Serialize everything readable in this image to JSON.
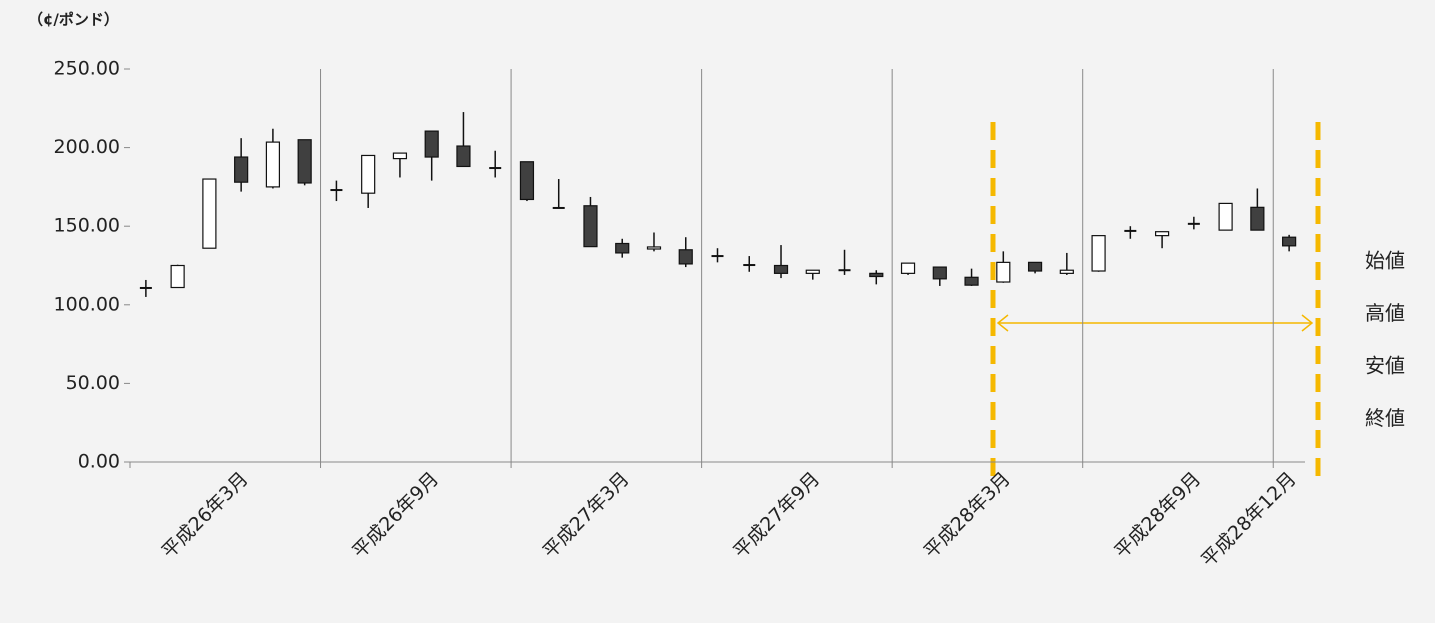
{
  "chart_data": {
    "type": "candlestick",
    "y_label": "（¢/ポンド）",
    "categories": [
      null,
      null,
      null,
      "平成26年3月",
      null,
      null,
      null,
      null,
      null,
      "平成26年9月",
      null,
      null,
      null,
      null,
      null,
      "平成27年3月",
      null,
      null,
      null,
      null,
      null,
      "平成27年9月",
      null,
      null,
      null,
      null,
      null,
      "平成28年3月",
      null,
      null,
      null,
      null,
      null,
      "平成28年9月",
      null,
      null,
      "平成28年12月"
    ],
    "series": [
      {
        "name": "始値",
        "values": [
          110.7,
          111,
          136,
          194,
          175,
          205,
          173,
          171,
          193,
          210.5,
          201,
          187,
          191,
          161.6,
          163,
          139,
          135.5,
          135,
          131,
          125.3,
          125,
          120,
          122,
          120,
          120,
          124,
          117.5,
          114.5,
          127,
          120,
          121.5,
          147,
          144,
          151.5,
          147.5,
          162,
          143
        ]
      },
      {
        "name": "高値",
        "values": [
          115.8,
          125.5,
          180,
          206,
          212,
          205,
          179,
          195,
          196.5,
          210.5,
          222.6,
          198,
          191,
          180,
          168.6,
          142,
          146,
          143,
          136,
          131,
          138,
          122,
          135,
          122,
          126.5,
          124,
          123,
          134,
          127,
          133,
          144,
          150,
          146.5,
          156,
          164.5,
          174,
          144.5
        ]
      },
      {
        "name": "安値",
        "values": [
          105,
          111,
          136,
          172,
          174,
          176,
          166,
          161.6,
          181,
          179,
          188,
          181,
          166,
          161.6,
          137,
          130,
          134,
          124,
          127,
          121,
          117,
          116,
          119,
          113,
          119,
          112,
          112,
          114,
          120,
          119,
          121,
          142,
          136,
          148,
          147.5,
          147.5,
          134
        ]
      },
      {
        "name": "終値",
        "values": [
          110.7,
          125,
          180,
          178,
          203.5,
          177.5,
          173,
          195,
          196.5,
          194,
          188,
          187,
          167,
          161.6,
          137,
          133,
          136.8,
          126,
          131,
          125.3,
          120,
          122,
          122,
          118,
          126.5,
          116.5,
          112.5,
          127,
          121.5,
          122,
          144,
          147,
          146.5,
          151.5,
          164.5,
          147.5,
          137.5
        ]
      }
    ],
    "up_color": "#ffffff",
    "down_color": "#404040",
    "ylim": [
      0,
      250
    ],
    "yticks": [
      {
        "value": 0,
        "label": "0.00"
      },
      {
        "value": 50,
        "label": "50.00"
      },
      {
        "value": 100,
        "label": "100.00"
      },
      {
        "value": 150,
        "label": "150.00"
      },
      {
        "value": 200,
        "label": "200.00"
      },
      {
        "value": 250,
        "label": "250.00"
      }
    ]
  }
}
